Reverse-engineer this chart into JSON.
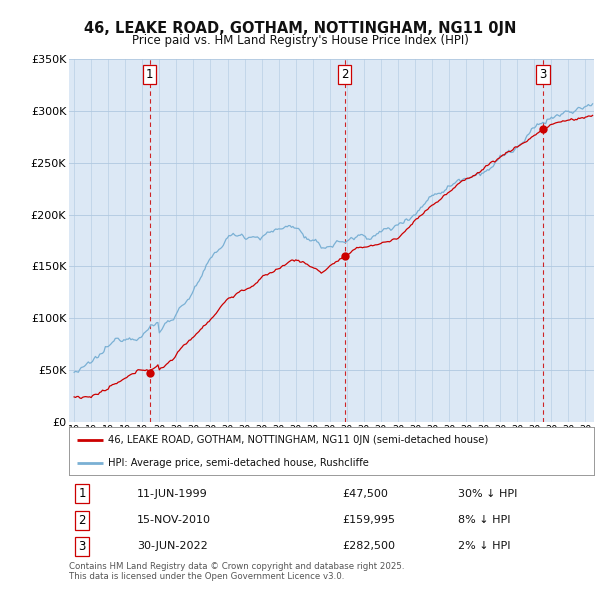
{
  "title": "46, LEAKE ROAD, GOTHAM, NOTTINGHAM, NG11 0JN",
  "subtitle": "Price paid vs. HM Land Registry's House Price Index (HPI)",
  "transactions": [
    {
      "num": 1,
      "date": "11-JUN-1999",
      "price": 47500,
      "year": 1999.44,
      "hpi_pct": "30% ↓ HPI"
    },
    {
      "num": 2,
      "date": "15-NOV-2010",
      "price": 159995,
      "year": 2010.87,
      "hpi_pct": "8% ↓ HPI"
    },
    {
      "num": 3,
      "date": "30-JUN-2022",
      "price": 282500,
      "year": 2022.5,
      "hpi_pct": "2% ↓ HPI"
    }
  ],
  "legend_entries": [
    "46, LEAKE ROAD, GOTHAM, NOTTINGHAM, NG11 0JN (semi-detached house)",
    "HPI: Average price, semi-detached house, Rushcliffe"
  ],
  "footer": "Contains HM Land Registry data © Crown copyright and database right 2025.\nThis data is licensed under the Open Government Licence v3.0.",
  "line_color_red": "#cc0000",
  "line_color_blue": "#7ab0d4",
  "background_color": "#ffffff",
  "chart_bg_color": "#dce8f5",
  "grid_color": "#b0c8e0",
  "ylim": [
    0,
    350000
  ],
  "xlim": [
    1994.7,
    2025.5
  ],
  "yticks": [
    0,
    50000,
    100000,
    150000,
    200000,
    250000,
    300000,
    350000
  ],
  "ytick_labels": [
    "£0",
    "£50K",
    "£100K",
    "£150K",
    "£200K",
    "£250K",
    "£300K",
    "£350K"
  ]
}
